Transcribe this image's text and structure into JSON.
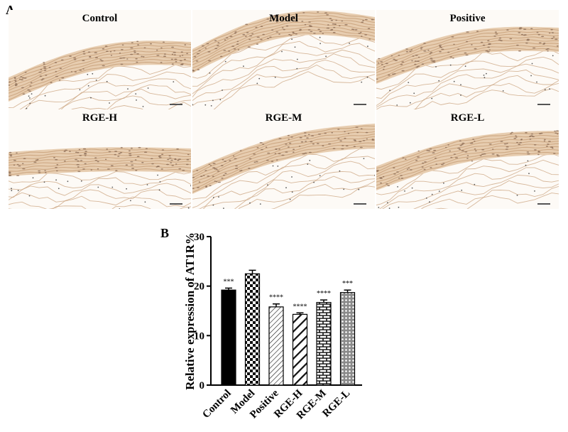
{
  "panel_a": {
    "letter": "A",
    "images": [
      {
        "label": "Control"
      },
      {
        "label": "Model"
      },
      {
        "label": "Positive"
      },
      {
        "label": "RGE-H"
      },
      {
        "label": "RGE-M"
      },
      {
        "label": "RGE-L"
      }
    ]
  },
  "panel_b": {
    "letter": "B"
  },
  "colors": {
    "tissue": "#c9a27c",
    "nuclei": "#8a6a55",
    "bar_dark": "#000000"
  },
  "chart_data": {
    "type": "bar",
    "title": "",
    "xlabel": "",
    "ylabel": "Relative expression of AT1R%",
    "ylim": [
      0,
      30
    ],
    "yticks": [
      0,
      10,
      20,
      30
    ],
    "categories": [
      "Control",
      "Model",
      "Positive",
      "RGE-H",
      "RGE-M",
      "RGE-L"
    ],
    "values": [
      19.2,
      22.5,
      15.8,
      14.3,
      16.7,
      18.7
    ],
    "errors": [
      0.4,
      0.7,
      0.6,
      0.3,
      0.5,
      0.5
    ],
    "significance": [
      "***",
      "",
      "****",
      "****",
      "****",
      "***"
    ],
    "patterns": [
      "solid",
      "checker",
      "diag-thin",
      "diag-thick",
      "brick",
      "dots"
    ]
  }
}
